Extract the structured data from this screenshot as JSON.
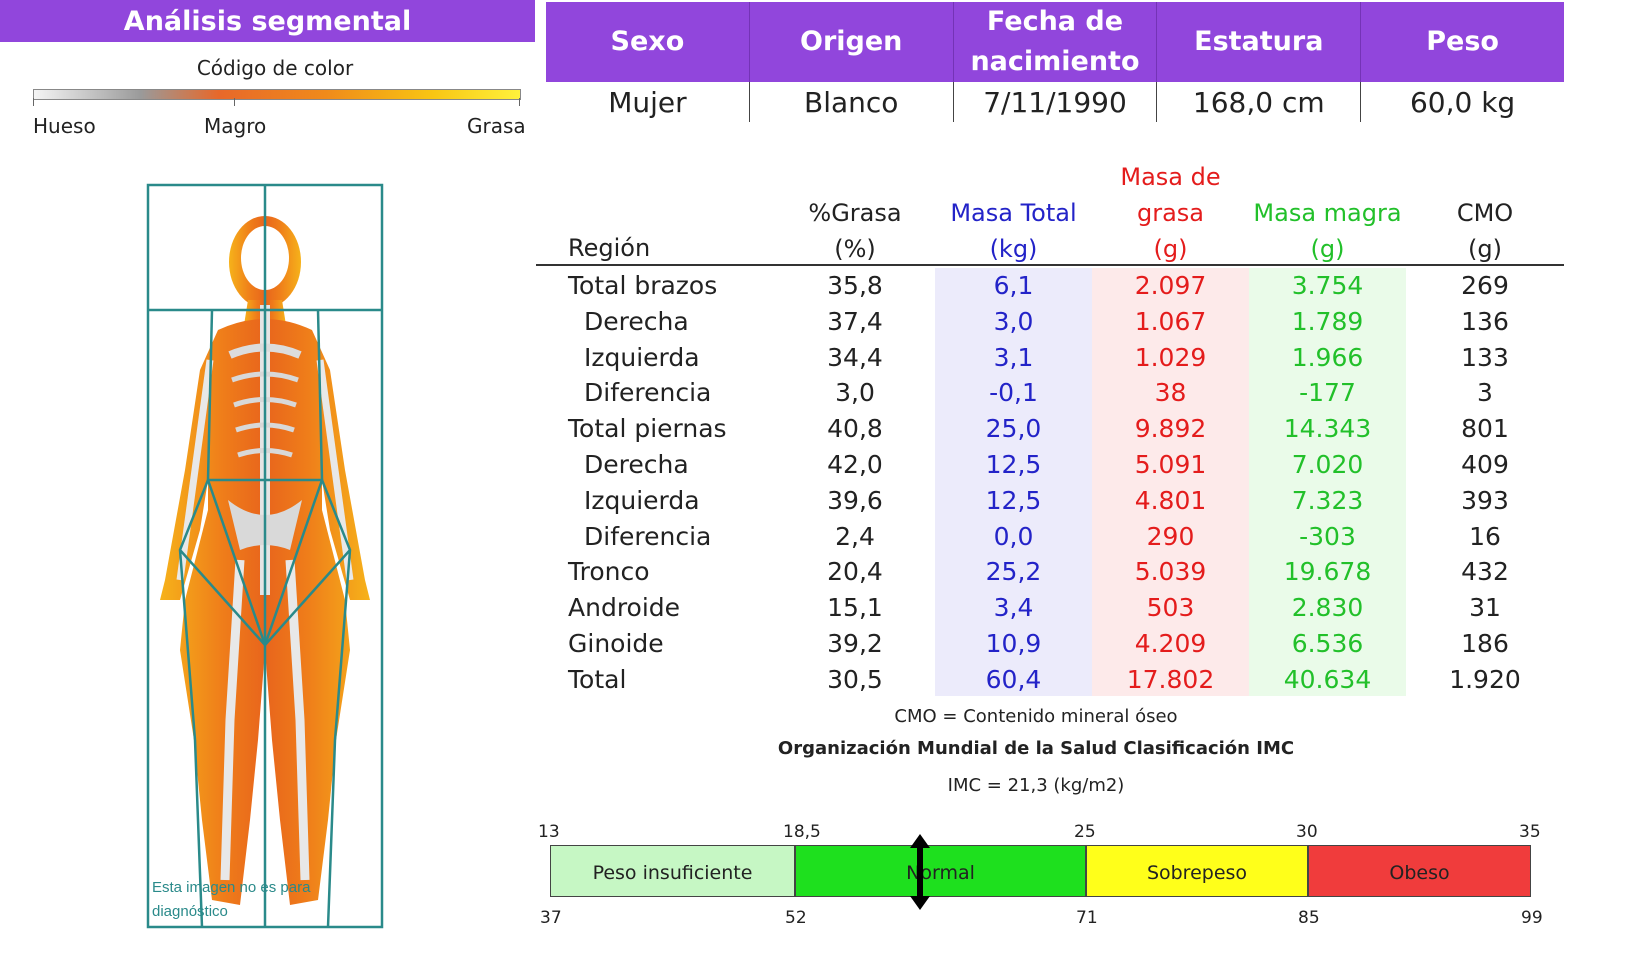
{
  "segmental": {
    "title": "Análisis segmental",
    "color_code_label": "Código de color",
    "scale_labels": [
      "Hueso",
      "Magro",
      "Grasa"
    ],
    "image_caption": "Esta imagen no es para diagnóstico"
  },
  "patient_header": {
    "columns": [
      "Sexo",
      "Origen",
      "Fecha de nacimiento",
      "Estatura",
      "Peso"
    ],
    "values": [
      "Mujer",
      "Blanco",
      "7/11/1990",
      "168,0 cm",
      "60,0 kg"
    ]
  },
  "table": {
    "region_header": "Región",
    "headers": [
      {
        "label": "%Grasa",
        "unit": "(%)"
      },
      {
        "label": "Masa Total",
        "unit": "(kg)"
      },
      {
        "label": "Masa de grasa",
        "unit": "(g)"
      },
      {
        "label": "Masa magra",
        "unit": "(g)"
      },
      {
        "label": "CMO",
        "unit": "(g)"
      }
    ],
    "rows": [
      {
        "region": "Total brazos",
        "vals": [
          "35,8",
          "6,1",
          "2.097",
          "3.754",
          "269"
        ]
      },
      {
        "region": "Derecha",
        "vals": [
          "37,4",
          "3,0",
          "1.067",
          "1.789",
          "136"
        ]
      },
      {
        "region": "Izquierda",
        "vals": [
          "34,4",
          "3,1",
          "1.029",
          "1.966",
          "133"
        ]
      },
      {
        "region": "Diferencia",
        "vals": [
          "3,0",
          "-0,1",
          "38",
          "-177",
          "3"
        ]
      },
      {
        "region": "Total piernas",
        "vals": [
          "40,8",
          "25,0",
          "9.892",
          "14.343",
          "801"
        ]
      },
      {
        "region": "Derecha",
        "vals": [
          "42,0",
          "12,5",
          "5.091",
          "7.020",
          "409"
        ]
      },
      {
        "region": "Izquierda",
        "vals": [
          "39,6",
          "12,5",
          "4.801",
          "7.323",
          "393"
        ]
      },
      {
        "region": "Diferencia",
        "vals": [
          "2,4",
          "0,0",
          "290",
          "-303",
          "16"
        ]
      },
      {
        "region": "Tronco",
        "vals": [
          "20,4",
          "25,2",
          "5.039",
          "19.678",
          "432"
        ]
      },
      {
        "region": "Androide",
        "vals": [
          "15,1",
          "3,4",
          "503",
          "2.830",
          "31"
        ]
      },
      {
        "region": "Ginoide",
        "vals": [
          "39,2",
          "10,9",
          "4.209",
          "6.536",
          "186"
        ]
      },
      {
        "region": "Total",
        "vals": [
          "30,5",
          "60,4",
          "17.802",
          "40.634",
          "1.920"
        ]
      }
    ],
    "cmo_note": "CMO = Contenido mineral óseo"
  },
  "bmi": {
    "title": "Organización Mundial de la Salud Clasificación IMC",
    "value_text": "IMC = 21,3 (kg/m2)",
    "value": 21.3,
    "top_ticks": [
      "13",
      "18,5",
      "25",
      "30",
      "35"
    ],
    "bottom_ticks": [
      "37",
      "52",
      "71",
      "85",
      "99"
    ],
    "categories": [
      {
        "label": "Peso insuficiente",
        "color": "#c6f7c4"
      },
      {
        "label": "Normal",
        "color": "#1ee01e"
      },
      {
        "label": "Sobrepeso",
        "color": "#ffff1a"
      },
      {
        "label": "Obeso",
        "color": "#f03c3c"
      }
    ]
  }
}
